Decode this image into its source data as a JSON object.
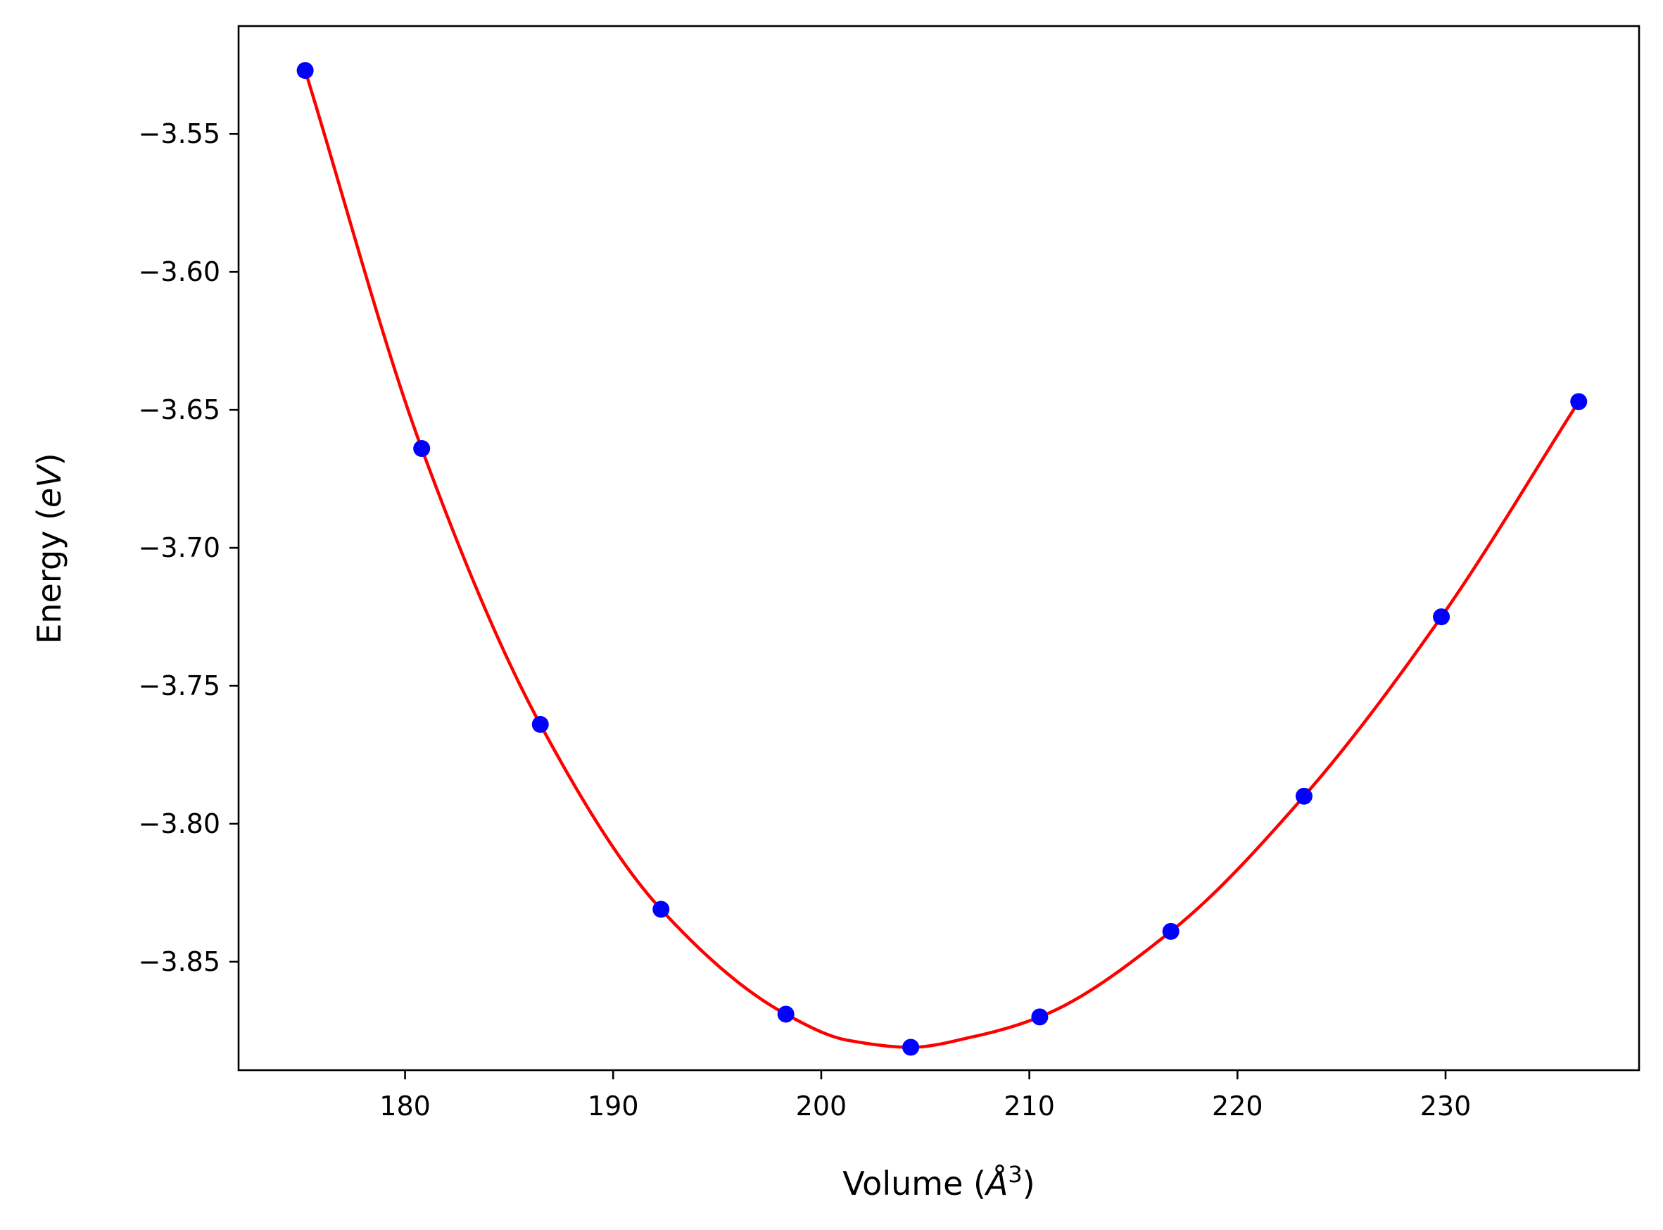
{
  "chart_data": {
    "type": "scatter",
    "title": "",
    "xlabel": {
      "pre": "Volume (",
      "var": "Å",
      "sup": "3",
      "post": ")"
    },
    "ylabel": {
      "pre": "Energy (",
      "var": "eV",
      "post": ")"
    },
    "xlim": [
      172,
      239.3
    ],
    "ylim": [
      -3.8893,
      -3.5109
    ],
    "xticks": [
      180,
      190,
      200,
      210,
      220,
      230
    ],
    "yticks": [
      -3.55,
      -3.6,
      -3.65,
      -3.7,
      -3.75,
      -3.8,
      -3.85
    ],
    "xtick_labels": [
      "180",
      "190",
      "200",
      "210",
      "220",
      "230"
    ],
    "ytick_labels": [
      "−3.55",
      "−3.60",
      "−3.65",
      "−3.70",
      "−3.75",
      "−3.80",
      "−3.85"
    ],
    "grid": false,
    "colors": {
      "points": "#0000ff",
      "fit": "#ff0000",
      "axes": "#000000"
    },
    "series": [
      {
        "kind": "points",
        "x": [
          175.2,
          180.8,
          186.5,
          192.3,
          198.3,
          204.3,
          210.5,
          216.8,
          223.2,
          229.8,
          236.4
        ],
        "y": [
          -3.527,
          -3.664,
          -3.764,
          -3.831,
          -3.869,
          -3.881,
          -3.87,
          -3.839,
          -3.79,
          -3.725,
          -3.647
        ]
      },
      {
        "kind": "fit-line",
        "x": [
          175.2,
          180.8,
          186.5,
          192.3,
          198.3,
          201.3,
          204.3,
          207.4,
          210.5,
          216.8,
          223.2,
          229.8,
          236.4
        ],
        "y": [
          -3.527,
          -3.664,
          -3.764,
          -3.831,
          -3.869,
          -3.8785,
          -3.881,
          -3.877,
          -3.87,
          -3.839,
          -3.79,
          -3.725,
          -3.647
        ]
      }
    ]
  }
}
